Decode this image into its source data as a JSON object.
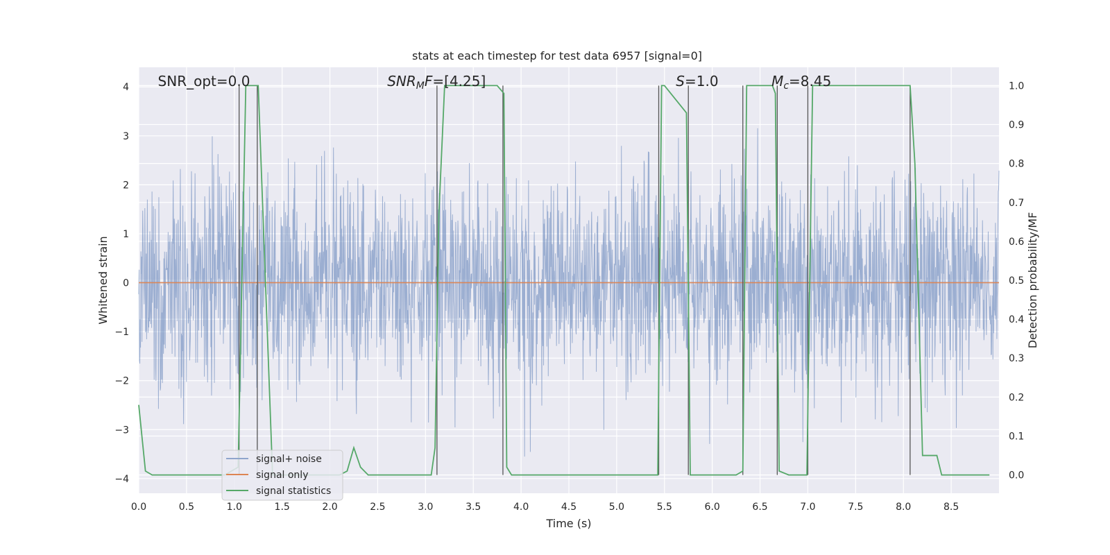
{
  "chart_data": {
    "type": "line",
    "title": "stats at each timestep for test data 6957 [signal=0]",
    "xlabel": "Time (s)",
    "ylabel": "Whitened strain",
    "ylabel_right": "Detection probability/MF",
    "xlim": [
      0.0,
      9.0
    ],
    "ylim": [
      -4.3,
      4.4
    ],
    "ylim_right": [
      -0.047,
      1.047
    ],
    "x_ticks": [
      "0.0",
      "0.5",
      "1.0",
      "1.5",
      "2.0",
      "2.5",
      "3.0",
      "3.5",
      "4.0",
      "4.5",
      "5.0",
      "5.5",
      "6.0",
      "6.5",
      "7.0",
      "7.5",
      "8.0",
      "8.5"
    ],
    "y_ticks": [
      "4",
      "3",
      "2",
      "1",
      "0",
      "−1",
      "−2",
      "−3",
      "−4"
    ],
    "y_ticks_right": [
      "1.0",
      "0.9",
      "0.8",
      "0.7",
      "0.6",
      "0.5",
      "0.4",
      "0.3",
      "0.2",
      "0.1",
      "0.0"
    ],
    "grid": true,
    "legend_position": "lower-left",
    "annotations": [
      {
        "label": "SNR_opt=0.0",
        "x": 0.2
      },
      {
        "label": "SNR_MF=[4.25]",
        "x": 2.6,
        "italic_parts": true
      },
      {
        "label": "S=1.0",
        "x": 5.62,
        "italic_parts": true
      },
      {
        "label": "M_c=8.45",
        "x": 6.62,
        "italic_parts": true
      }
    ],
    "series": [
      {
        "name": "signal+ noise",
        "color": "#4c72b0",
        "note_style": "dense noise trace, roughly Gaussian with sigma about 1.05, peaks near ±3.7",
        "sigma": 1.05
      },
      {
        "name": "signal only",
        "color": "#dd8452",
        "x": [
          0.0,
          9.0
        ],
        "values": [
          0.0,
          0.0
        ]
      },
      {
        "name": "signal statistics",
        "color": "#55a868",
        "axis": "right",
        "x": [
          0.0,
          0.07,
          0.14,
          0.9,
          1.04,
          1.12,
          1.25,
          1.4,
          1.45,
          2.1,
          2.18,
          2.25,
          2.32,
          2.4,
          3.06,
          3.1,
          3.14,
          3.2,
          3.75,
          3.82,
          3.85,
          3.9,
          3.95,
          5.43,
          5.47,
          5.5,
          5.73,
          5.77,
          5.85,
          6.25,
          6.32,
          6.36,
          6.38,
          6.63,
          6.66,
          6.7,
          6.8,
          6.88,
          6.99,
          7.05,
          8.07,
          8.12,
          8.2,
          8.25,
          8.35,
          8.4,
          8.5,
          8.9
        ],
        "values": [
          0.18,
          0.01,
          0.0,
          0.0,
          0.02,
          1.0,
          1.0,
          0.0,
          0.0,
          0.0,
          0.01,
          0.07,
          0.02,
          0.0,
          0.0,
          0.07,
          0.67,
          1.0,
          1.0,
          0.98,
          0.02,
          0.0,
          0.0,
          0.0,
          1.0,
          1.0,
          0.93,
          0.0,
          0.0,
          0.0,
          0.01,
          1.0,
          1.0,
          1.0,
          0.98,
          0.01,
          0.0,
          0.0,
          0.0,
          1.0,
          1.0,
          0.8,
          0.05,
          0.05,
          0.05,
          0.0,
          0.0,
          0.0
        ]
      }
    ],
    "vertical_markers_x": [
      1.05,
      1.24,
      3.12,
      3.81,
      5.44,
      5.75,
      6.32,
      6.68,
      7.0,
      8.07
    ]
  }
}
